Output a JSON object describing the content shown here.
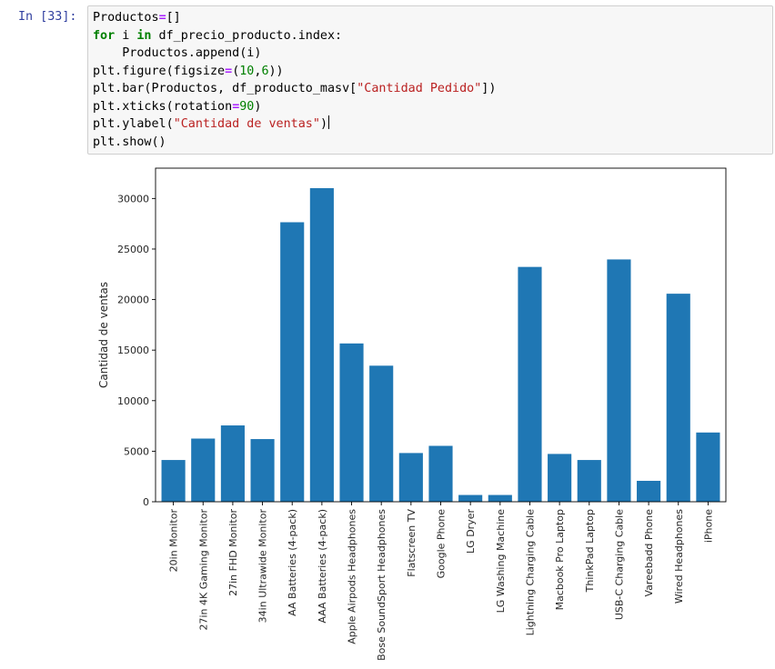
{
  "cell": {
    "prompt": "In [33]:",
    "code_lines": [
      [
        {
          "t": "Productos"
        },
        {
          "t": "=",
          "c": "op"
        },
        {
          "t": "[]"
        }
      ],
      [
        {
          "t": "for",
          "c": "kw"
        },
        {
          "t": " i "
        },
        {
          "t": "in",
          "c": "kw"
        },
        {
          "t": " df_precio_producto.index:"
        }
      ],
      [
        {
          "t": "    Productos.append(i)"
        }
      ],
      [
        {
          "t": "plt.figure(figsize"
        },
        {
          "t": "=",
          "c": "op"
        },
        {
          "t": "("
        },
        {
          "t": "10",
          "c": "num"
        },
        {
          "t": ","
        },
        {
          "t": "6",
          "c": "num"
        },
        {
          "t": "))"
        }
      ],
      [
        {
          "t": "plt.bar(Productos, df_producto_masv["
        },
        {
          "t": "\"Cantidad Pedido\"",
          "c": "str"
        },
        {
          "t": "])"
        }
      ],
      [
        {
          "t": "plt.xticks(rotation"
        },
        {
          "t": "=",
          "c": "op"
        },
        {
          "t": "90",
          "c": "num"
        },
        {
          "t": ")"
        }
      ],
      [
        {
          "t": "plt.ylabel("
        },
        {
          "t": "\"Cantidad de ventas\"",
          "c": "str"
        },
        {
          "t": ")"
        },
        {
          "cursor": true
        }
      ],
      [
        {
          "t": "plt.show()"
        }
      ]
    ]
  },
  "colors": {
    "bar": "#1f77b4",
    "prompt": "#303f9f",
    "cell_bg": "#f7f7f7"
  },
  "chart_data": {
    "type": "bar",
    "categories": [
      "20in Monitor",
      "27in 4K Gaming Monitor",
      "27in FHD Monitor",
      "34in Ultrawide Monitor",
      "AA Batteries (4-pack)",
      "AAA Batteries (4-pack)",
      "Apple Airpods Headphones",
      "Bose SoundSport Headphones",
      "Flatscreen TV",
      "Google Phone",
      "LG Dryer",
      "LG Washing Machine",
      "Lightning Charging Cable",
      "Macbook Pro Laptop",
      "ThinkPad Laptop",
      "USB-C Charging Cable",
      "Vareebadd Phone",
      "Wired Headphones",
      "iPhone"
    ],
    "values": [
      4130,
      6250,
      7550,
      6200,
      27650,
      31020,
      15660,
      13460,
      4820,
      5530,
      670,
      670,
      23230,
      4730,
      4130,
      23970,
      2070,
      20580,
      6850
    ],
    "title": "",
    "xlabel": "",
    "ylabel": "Cantidad de ventas",
    "ylim": [
      0,
      33000
    ],
    "yticks": [
      0,
      5000,
      10000,
      15000,
      20000,
      25000,
      30000
    ],
    "grid": false
  }
}
